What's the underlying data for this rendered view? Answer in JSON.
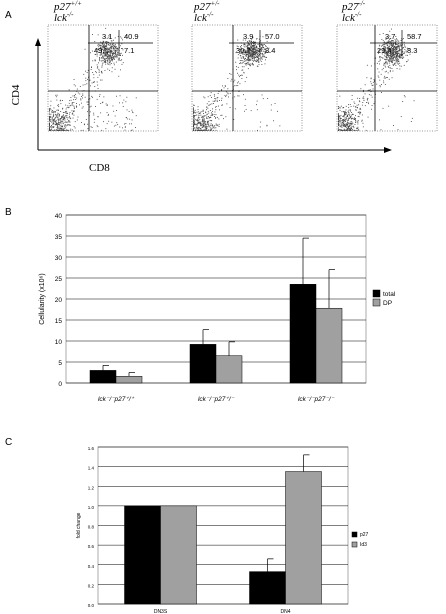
{
  "panels": {
    "a": "A",
    "b": "B",
    "c": "C"
  },
  "flow": {
    "plots": [
      {
        "genotype_main": "p27",
        "genotype_main_sup": "+/+",
        "genotype_sub": "lck",
        "genotype_sub_sup": "-/-",
        "quadrants": {
          "upper_left": "3.1",
          "upper_right": "40.9",
          "lower_left": "49.0",
          "lower_right": "7.1"
        }
      },
      {
        "genotype_main": "p27",
        "genotype_main_sup": "+/-",
        "genotype_sub": "lck",
        "genotype_sub_sup": "-/-",
        "quadrants": {
          "upper_left": "3.9",
          "upper_right": "57.0",
          "lower_left": "30.7",
          "lower_right": "8.4"
        }
      },
      {
        "genotype_main": "p27",
        "genotype_main_sup": "-/-",
        "genotype_sub": "lck",
        "genotype_sub_sup": "-/-",
        "quadrants": {
          "upper_left": "3.7",
          "upper_right": "58.7",
          "lower_left": "29.4",
          "lower_right": "8.3"
        }
      }
    ],
    "y_axis_label": "CD4",
    "x_axis_label": "CD8"
  },
  "chart_data": [
    {
      "type": "bar",
      "categories": [
        "lck⁻/⁻p27⁺/⁺",
        "lck⁻/⁻p27⁺/⁻",
        "lck⁻/⁻p27⁻/⁻"
      ],
      "series": [
        {
          "name": "total",
          "values": [
            3.0,
            9.2,
            23.5
          ],
          "errors": [
            1.2,
            3.5,
            11.0
          ],
          "color": "#000000"
        },
        {
          "name": "DP",
          "values": [
            1.6,
            6.5,
            17.8
          ],
          "errors": [
            0.9,
            3.3,
            9.2
          ],
          "color": "#a0a0a0"
        }
      ],
      "ylabel": "Cellularity (x10⁶)",
      "ylim": [
        0,
        40
      ],
      "yticks": [
        "0",
        "5",
        "10",
        "15",
        "20",
        "25",
        "30",
        "35",
        "40"
      ],
      "grid": true,
      "legend_position": "right"
    },
    {
      "type": "bar",
      "categories": [
        "DN3S",
        "DN4"
      ],
      "series": [
        {
          "name": "p27",
          "values": [
            1.0,
            0.33
          ],
          "errors": [
            0,
            0.13
          ],
          "color": "#000000"
        },
        {
          "name": "Id3",
          "values": [
            1.0,
            1.35
          ],
          "errors": [
            0,
            0.17
          ],
          "color": "#a0a0a0"
        }
      ],
      "ylabel": "fold change",
      "ylim": [
        0,
        1.6
      ],
      "yticks": [
        "0.0",
        "0.2",
        "0.4",
        "0.6",
        "0.8",
        "1.0",
        "1.2",
        "1.4",
        "1.6"
      ],
      "grid": true,
      "legend_position": "right"
    }
  ]
}
